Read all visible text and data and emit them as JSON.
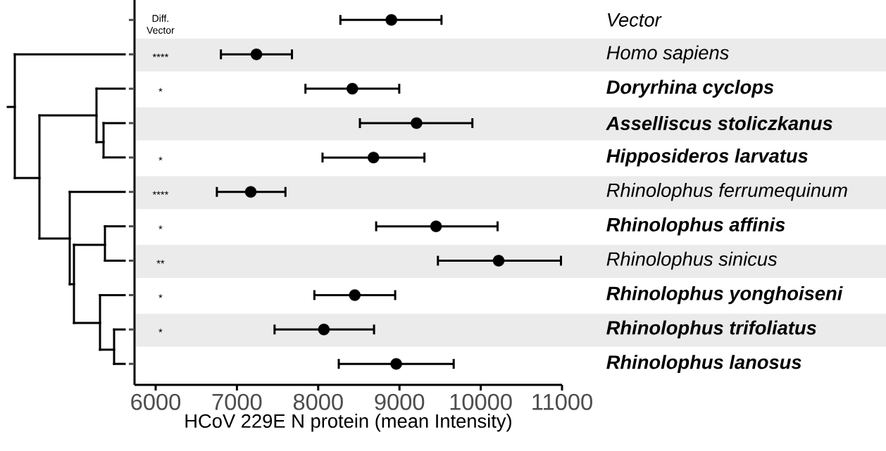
{
  "chart_data": {
    "type": "scatter",
    "orientation": "horizontal",
    "xlabel": "HCoV 229E N protein (mean Intensity)",
    "categories": [
      "Vector",
      "Homo sapiens",
      "**Doryrhina cyclops**",
      "**Asselliscus stoliczkanus**",
      "**Hipposideros larvatus**",
      "Rhinolophus ferrumequinum",
      "**Rhinolophus affinis**",
      "Rhinolophus sinicus",
      "**Rhinolophus yonghoiseni**",
      "**Rhinolophus trifoliatus**",
      "**Rhinolophus lanosus**"
    ],
    "values": [
      8900,
      7240,
      8420,
      9210,
      8680,
      7170,
      9450,
      10220,
      8450,
      8070,
      8960
    ],
    "errors": [
      [
        8260,
        9530
      ],
      [
        6790,
        7690
      ],
      [
        7830,
        9010
      ],
      [
        8500,
        9910
      ],
      [
        8040,
        9320
      ],
      [
        6740,
        7610
      ],
      [
        8700,
        10220
      ],
      [
        9460,
        11000
      ],
      [
        7940,
        8960
      ],
      [
        7450,
        8700
      ],
      [
        8240,
        9680
      ]
    ],
    "color": "#000000",
    "xlim": [
      5740,
      11000
    ],
    "xticks": [
      6000,
      7000,
      8000,
      9000,
      10000,
      11000
    ],
    "bands": [
      {
        "axis": "y",
        "from": "Homo sapiens",
        "to": "Homo sapiens",
        "color": "#ebebeb"
      },
      {
        "axis": "y",
        "from": "**Asselliscus stoliczkanus**",
        "to": "**Asselliscus stoliczkanus**",
        "color": "#ebebeb"
      },
      {
        "axis": "y",
        "from": "Rhinolophus ferrumequinum",
        "to": "Rhinolophus ferrumequinum",
        "color": "#ebebeb"
      },
      {
        "axis": "y",
        "from": "Rhinolophus sinicus",
        "to": "Rhinolophus sinicus",
        "color": "#ebebeb"
      },
      {
        "axis": "y",
        "from": "**Rhinolophus trifoliatus**",
        "to": "**Rhinolophus trifoliatus**",
        "color": "#ebebeb"
      }
    ],
    "annotations": [
      "Diff. Vector",
      "****",
      "*",
      "*",
      "****",
      "*",
      "**",
      "*",
      "*"
    ]
  }
}
